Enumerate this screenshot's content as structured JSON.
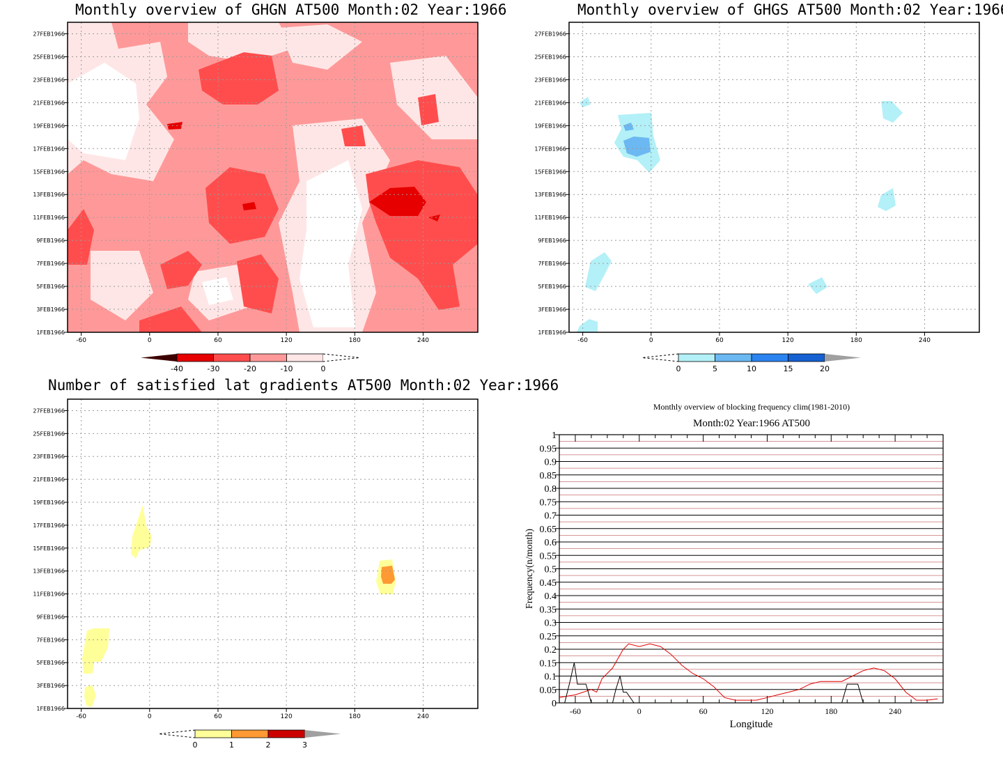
{
  "panels": {
    "ghgn": {
      "title": "Monthly overview of GHGN AT500 Month:02 Year:1966",
      "colorbar_labels": [
        "-40",
        "-30",
        "-20",
        "-10",
        "0"
      ],
      "colorbar_colors": [
        "#3d0000",
        "#e60000",
        "#ff4d4d",
        "#ff9999",
        "#ffe6e6"
      ]
    },
    "ghgs": {
      "title": "Monthly overview of GHGS AT500 Month:02 Year:1966",
      "colorbar_labels": [
        "0",
        "5",
        "10",
        "15",
        "20"
      ],
      "colorbar_colors": [
        "#b3f0f7",
        "#6bb8f2",
        "#2b83ef",
        "#1561d1",
        "#a0a0a0"
      ]
    },
    "gradients": {
      "title": "Number of satisfied lat gradients AT500 Month:02 Year:1966",
      "colorbar_labels": [
        "0",
        "1",
        "2",
        "3"
      ],
      "colorbar_colors": [
        "#ffff99",
        "#ff9933",
        "#cc0000",
        "#a0a0a0"
      ]
    },
    "frequency": {
      "title": "Monthly overview of blocking frequency clim(1981-2010)",
      "subtitle": "Month:02 Year:1966  AT500"
    }
  },
  "axes": {
    "date_ticks": [
      "1FEB1966",
      "3FEB1966",
      "5FEB1966",
      "7FEB1966",
      "9FEB1966",
      "11FEB1966",
      "13FEB1966",
      "15FEB1966",
      "17FEB1966",
      "19FEB1966",
      "21FEB1966",
      "23FEB1966",
      "25FEB1966",
      "27FEB1966"
    ],
    "lon_ticks": [
      "-60",
      "0",
      "60",
      "120",
      "180",
      "240"
    ]
  },
  "chart_data": [
    {
      "type": "heatmap",
      "title": "Monthly overview of GHGN AT500 Month:02 Year:1966",
      "x_range": [
        -72,
        288
      ],
      "y_range": [
        "1FEB1966",
        "28FEB1966"
      ],
      "levels": [
        -40,
        -30,
        -20,
        -10,
        0
      ],
      "grid": true
    },
    {
      "type": "heatmap",
      "title": "Monthly overview of GHGS AT500 Month:02 Year:1966",
      "x_range": [
        -72,
        288
      ],
      "y_range": [
        "1FEB1966",
        "28FEB1966"
      ],
      "levels": [
        0,
        5,
        10,
        15,
        20
      ],
      "grid": true
    },
    {
      "type": "heatmap",
      "title": "Number of satisfied lat gradients AT500 Month:02 Year:1966",
      "x_range": [
        -72,
        288
      ],
      "y_range": [
        "1FEB1966",
        "28FEB1966"
      ],
      "levels": [
        0,
        1,
        2,
        3
      ],
      "grid": true
    },
    {
      "type": "line",
      "title": "Monthly overview of blocking frequency clim(1981-2010)",
      "subtitle": "Month:02 Year:1966  AT500",
      "xlabel": "Longitude",
      "ylabel": "Frequency(n/month)",
      "xlim": [
        -75,
        285
      ],
      "ylim": [
        0,
        1
      ],
      "x_ticks": [
        -60,
        0,
        60,
        120,
        180,
        240
      ],
      "y_ticks": [
        "0",
        "0.05",
        "0.1",
        "0.15",
        "0.2",
        "0.25",
        "0.3",
        "0.35",
        "0.4",
        "0.45",
        "0.5",
        "0.55",
        "0.6",
        "0.65",
        "0.7",
        "0.75",
        "0.8",
        "0.85",
        "0.9",
        "0.95",
        "1"
      ],
      "series": [
        {
          "color": "#e00000",
          "x": [
            -75,
            -60,
            -45,
            -40,
            -35,
            -25,
            -15,
            -10,
            0,
            10,
            20,
            30,
            40,
            50,
            60,
            70,
            80,
            90,
            100,
            110,
            120,
            130,
            140,
            150,
            160,
            170,
            180,
            190,
            200,
            210,
            220,
            230,
            240,
            250,
            260,
            270,
            280
          ],
          "y": [
            0.02,
            0.03,
            0.05,
            0.04,
            0.09,
            0.13,
            0.2,
            0.22,
            0.21,
            0.22,
            0.21,
            0.18,
            0.14,
            0.11,
            0.09,
            0.06,
            0.02,
            0.01,
            0.01,
            0.01,
            0.02,
            0.03,
            0.04,
            0.05,
            0.07,
            0.08,
            0.08,
            0.08,
            0.1,
            0.12,
            0.13,
            0.12,
            0.09,
            0.04,
            0.01,
            0.01,
            0.015
          ]
        },
        {
          "color": "#000000",
          "x": [
            -70,
            -65,
            -61,
            -58,
            -55,
            -50,
            -45,
            -40,
            -25,
            -22,
            -18,
            -15,
            -12,
            -5,
            0,
            190,
            195,
            205,
            210,
            215
          ],
          "y": [
            0,
            0.08,
            0.15,
            0.07,
            0.07,
            0.07,
            0,
            0,
            0,
            0.05,
            0.1,
            0.04,
            0.04,
            0,
            0,
            0,
            0.07,
            0.07,
            0,
            0
          ]
        }
      ]
    }
  ]
}
